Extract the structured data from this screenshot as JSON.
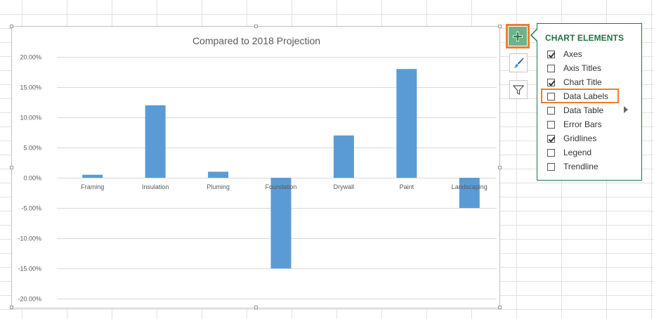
{
  "chart_data": {
    "type": "bar",
    "title": "Compared to 2018 Projection",
    "categories": [
      "Framing",
      "Insulation",
      "Pluming",
      "Foundation",
      "Drywall",
      "Paint",
      "Landscaping"
    ],
    "values": [
      0.5,
      12,
      1,
      -15,
      7,
      18,
      -5
    ],
    "ylim": [
      -20,
      20
    ],
    "yticks": [
      "20.00%",
      "15.00%",
      "10.00%",
      "5.00%",
      "0.00%",
      "-5.00%",
      "-10.00%",
      "-15.00%",
      "-20.00%"
    ],
    "ytick_values": [
      20,
      15,
      10,
      5,
      0,
      -5,
      -10,
      -15,
      -20
    ],
    "bar_color": "#5b9bd5",
    "gridlines": true,
    "legend": false
  },
  "panel": {
    "title": "CHART ELEMENTS",
    "options": [
      {
        "label": "Axes",
        "checked": true
      },
      {
        "label": "Axis Titles",
        "checked": false
      },
      {
        "label": "Chart Title",
        "checked": true
      },
      {
        "label": "Data Labels",
        "checked": false
      },
      {
        "label": "Data Table",
        "checked": false
      },
      {
        "label": "Error Bars",
        "checked": false
      },
      {
        "label": "Gridlines",
        "checked": true
      },
      {
        "label": "Legend",
        "checked": false
      },
      {
        "label": "Trendline",
        "checked": false
      }
    ]
  },
  "side_buttons": {
    "add": "plus-icon",
    "style": "paintbrush-icon",
    "filter": "filter-icon"
  },
  "colors": {
    "accent_highlight": "#ed7d31",
    "panel_green": "#217346",
    "plus_button_fill": "#70b28a"
  }
}
